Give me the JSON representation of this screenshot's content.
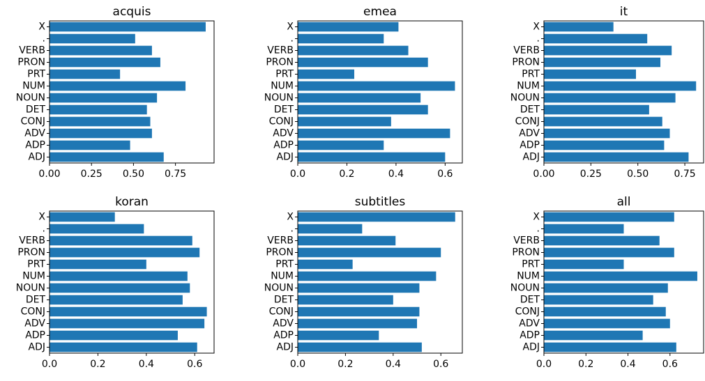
{
  "chart_data": [
    {
      "type": "bar",
      "orientation": "horizontal",
      "title": "acquis",
      "categories": [
        "X",
        ".",
        "VERB",
        "PRON",
        "PRT",
        "NUM",
        "NOUN",
        "DET",
        "CONJ",
        "ADV",
        "ADP",
        "ADJ"
      ],
      "values": [
        0.93,
        0.51,
        0.61,
        0.66,
        0.42,
        0.81,
        0.64,
        0.58,
        0.6,
        0.61,
        0.48,
        0.68
      ],
      "xlim": [
        0,
        0.98
      ],
      "xticks": [
        0,
        0.25,
        0.5,
        0.75
      ],
      "xtick_labels": [
        "0.00",
        "0.25",
        "0.50",
        "0.75"
      ],
      "color": "#1f77b4"
    },
    {
      "type": "bar",
      "orientation": "horizontal",
      "title": "emea",
      "categories": [
        "X",
        ".",
        "VERB",
        "PRON",
        "PRT",
        "NUM",
        "NOUN",
        "DET",
        "CONJ",
        "ADV",
        "ADP",
        "ADJ"
      ],
      "values": [
        0.41,
        0.35,
        0.45,
        0.53,
        0.23,
        0.64,
        0.5,
        0.53,
        0.38,
        0.62,
        0.35,
        0.6
      ],
      "xlim": [
        0,
        0.67
      ],
      "xticks": [
        0,
        0.2,
        0.4,
        0.6
      ],
      "xtick_labels": [
        "0.0",
        "0.2",
        "0.4",
        "0.6"
      ],
      "color": "#1f77b4"
    },
    {
      "type": "bar",
      "orientation": "horizontal",
      "title": "it",
      "categories": [
        "X",
        ".",
        "VERB",
        "PRON",
        "PRT",
        "NUM",
        "NOUN",
        "DET",
        "CONJ",
        "ADV",
        "ADP",
        "ADJ"
      ],
      "values": [
        0.37,
        0.55,
        0.68,
        0.62,
        0.49,
        0.81,
        0.7,
        0.56,
        0.63,
        0.67,
        0.64,
        0.77
      ],
      "xlim": [
        0,
        0.85
      ],
      "xticks": [
        0,
        0.25,
        0.5,
        0.75
      ],
      "xtick_labels": [
        "0.00",
        "0.25",
        "0.50",
        "0.75"
      ],
      "color": "#1f77b4"
    },
    {
      "type": "bar",
      "orientation": "horizontal",
      "title": "koran",
      "categories": [
        "X",
        ".",
        "VERB",
        "PRON",
        "PRT",
        "NUM",
        "NOUN",
        "DET",
        "CONJ",
        "ADV",
        "ADP",
        "ADJ"
      ],
      "values": [
        0.27,
        0.39,
        0.59,
        0.62,
        0.4,
        0.57,
        0.58,
        0.55,
        0.65,
        0.64,
        0.53,
        0.61
      ],
      "xlim": [
        0,
        0.68
      ],
      "xticks": [
        0,
        0.2,
        0.4,
        0.6
      ],
      "xtick_labels": [
        "0.0",
        "0.2",
        "0.4",
        "0.6"
      ],
      "color": "#1f77b4"
    },
    {
      "type": "bar",
      "orientation": "horizontal",
      "title": "subtitles",
      "categories": [
        "X",
        ".",
        "VERB",
        "PRON",
        "PRT",
        "NUM",
        "NOUN",
        "DET",
        "CONJ",
        "ADV",
        "ADP",
        "ADJ"
      ],
      "values": [
        0.66,
        0.27,
        0.41,
        0.6,
        0.23,
        0.58,
        0.51,
        0.4,
        0.51,
        0.5,
        0.34,
        0.52
      ],
      "xlim": [
        0,
        0.69
      ],
      "xticks": [
        0,
        0.2,
        0.4,
        0.6
      ],
      "xtick_labels": [
        "0.0",
        "0.2",
        "0.4",
        "0.6"
      ],
      "color": "#1f77b4"
    },
    {
      "type": "bar",
      "orientation": "horizontal",
      "title": "all",
      "categories": [
        "X",
        ".",
        "VERB",
        "PRON",
        "PRT",
        "NUM",
        "NOUN",
        "DET",
        "CONJ",
        "ADV",
        "ADP",
        "ADJ"
      ],
      "values": [
        0.62,
        0.38,
        0.55,
        0.62,
        0.38,
        0.73,
        0.59,
        0.52,
        0.58,
        0.6,
        0.47,
        0.63
      ],
      "xlim": [
        0,
        0.76
      ],
      "xticks": [
        0,
        0.2,
        0.4,
        0.6
      ],
      "xtick_labels": [
        "0.0",
        "0.2",
        "0.4",
        "0.6"
      ],
      "color": "#1f77b4"
    }
  ]
}
